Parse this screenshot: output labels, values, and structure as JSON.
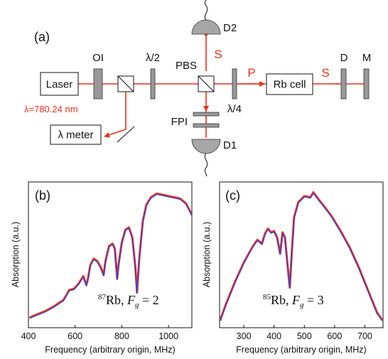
{
  "setup": {
    "panel_label": "(a)",
    "laser": "Laser",
    "wavelength": "λ=780.24 nm",
    "oi": "OI",
    "half_wave": "λ/2",
    "pbs": "PBS",
    "quarter_wave": "λ/4",
    "rb_cell": "Rb cell",
    "d": "D",
    "m": "M",
    "d2": "D2",
    "d1": "D1",
    "fpi": "FPI",
    "lambda_meter": "λ meter",
    "beam_p": "P",
    "beam_s_top": "S",
    "beam_s_right": "S",
    "colors": {
      "beam": "#e8321e",
      "optic": "#999999",
      "detector": "#a6a6a6"
    }
  },
  "chart_data": [
    {
      "type": "line",
      "panel_label": "(b)",
      "annotation": {
        "superscript": "87",
        "element": "Rb, ",
        "var": "F",
        "sub": "g",
        "rest": " = 2"
      },
      "xlabel": "Frequency (arbitrary origin, MHz)",
      "ylabel": "Absorption (a.u.)",
      "xlim": [
        400,
        1100
      ],
      "ylim": [
        0,
        1.05
      ],
      "xticks": [
        400,
        600,
        800,
        1000
      ],
      "series_colors": [
        "#e8321e",
        "#3c46c8"
      ],
      "x": [
        405,
        430,
        470,
        510,
        550,
        575,
        595,
        615,
        635,
        648,
        655,
        665,
        680,
        695,
        710,
        722,
        730,
        745,
        760,
        770,
        780,
        786,
        800,
        815,
        830,
        845,
        858,
        865,
        875,
        890,
        905,
        925,
        950,
        975,
        1000,
        1025,
        1050,
        1075,
        1100
      ],
      "y": [
        0.02,
        0.04,
        0.07,
        0.11,
        0.16,
        0.24,
        0.25,
        0.29,
        0.35,
        0.28,
        0.33,
        0.44,
        0.49,
        0.47,
        0.42,
        0.36,
        0.47,
        0.59,
        0.61,
        0.57,
        0.33,
        0.44,
        0.62,
        0.72,
        0.74,
        0.66,
        0.42,
        0.22,
        0.5,
        0.79,
        0.92,
        0.98,
        1.01,
        1.0,
        0.99,
        0.98,
        0.97,
        0.93,
        0.84
      ]
    },
    {
      "type": "line",
      "panel_label": "(c)",
      "annotation": {
        "superscript": "85",
        "element": "Rb, ",
        "var": "F",
        "sub": "g",
        "rest": " = 3"
      },
      "xlabel": "Frequency (arbitrary origin, MHz)",
      "ylabel": "Absorption (a.u.)",
      "xlim": [
        220,
        760
      ],
      "ylim": [
        0,
        1.05
      ],
      "xticks": [
        300,
        400,
        500,
        600,
        700
      ],
      "series_colors": [
        "#e8321e",
        "#3c46c8"
      ],
      "x": [
        222,
        240,
        270,
        300,
        330,
        345,
        360,
        370,
        380,
        390,
        400,
        410,
        420,
        428,
        436,
        445,
        452,
        458,
        466,
        480,
        500,
        520,
        530,
        545,
        565,
        590,
        620,
        650,
        680,
        710,
        740,
        758
      ],
      "y": [
        0.0,
        0.12,
        0.3,
        0.46,
        0.59,
        0.64,
        0.61,
        0.69,
        0.73,
        0.7,
        0.71,
        0.66,
        0.53,
        0.7,
        0.66,
        0.43,
        0.26,
        0.52,
        0.82,
        0.94,
        0.99,
        0.98,
        1.02,
        0.97,
        0.91,
        0.83,
        0.71,
        0.58,
        0.42,
        0.24,
        0.06,
        0.0
      ]
    }
  ]
}
